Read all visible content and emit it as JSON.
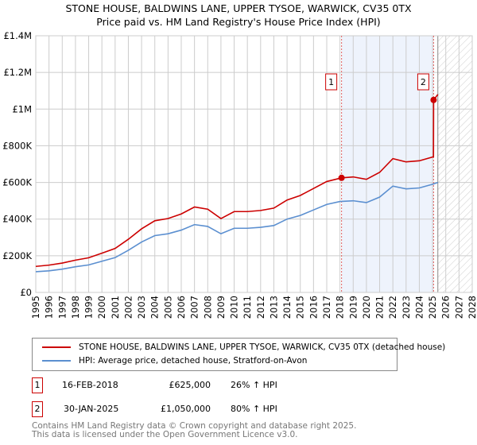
{
  "chart_data": {
    "type": "line",
    "title": "STONE HOUSE, BALDWINS LANE, UPPER TYSOE, WARWICK, CV35 0TX",
    "subtitle": "Price paid vs. HM Land Registry's House Price Index (HPI)",
    "xlim": [
      1995,
      2028
    ],
    "ylim": [
      0,
      1400000
    ],
    "y_ticks": [
      {
        "v": 0,
        "l": "£0"
      },
      {
        "v": 200000,
        "l": "£200K"
      },
      {
        "v": 400000,
        "l": "£400K"
      },
      {
        "v": 600000,
        "l": "£600K"
      },
      {
        "v": 800000,
        "l": "£800K"
      },
      {
        "v": 1000000,
        "l": "£1M"
      },
      {
        "v": 1200000,
        "l": "£1.2M"
      },
      {
        "v": 1400000,
        "l": "£1.4M"
      }
    ],
    "x_ticks": [
      "1995",
      "1996",
      "1997",
      "1998",
      "1999",
      "2000",
      "2001",
      "2002",
      "2003",
      "2004",
      "2005",
      "2006",
      "2007",
      "2008",
      "2009",
      "2010",
      "2011",
      "2012",
      "2013",
      "2014",
      "2015",
      "2016",
      "2017",
      "2018",
      "2019",
      "2020",
      "2021",
      "2022",
      "2023",
      "2024",
      "2025",
      "2026",
      "2027",
      "2028"
    ],
    "series": [
      {
        "name": "STONE HOUSE, BALDWINS LANE, UPPER TYSOE, WARWICK, CV35 0TX (detached house)",
        "color": "#cc0000",
        "x": [
          1995,
          1996,
          1997,
          1998,
          1999,
          2000,
          2001,
          2002,
          2003,
          2004,
          2005,
          2006,
          2007,
          2008,
          2009,
          2010,
          2011,
          2012,
          2013,
          2014,
          2015,
          2016,
          2017,
          2018.12,
          2019,
          2020,
          2021,
          2022,
          2023,
          2024,
          2025.07,
          2025.08,
          2025.4
        ],
        "y": [
          142000,
          149000,
          160000,
          176000,
          189000,
          214000,
          240000,
          290000,
          347000,
          391000,
          403000,
          428000,
          466000,
          454000,
          403000,
          441000,
          441000,
          447000,
          460000,
          504000,
          529000,
          567000,
          605000,
          625000,
          630000,
          617000,
          655000,
          730000,
          712000,
          718000,
          740000,
          1050000,
          1080000
        ]
      },
      {
        "name": "HPI: Average price, detached house, Stratford-on-Avon",
        "color": "#5b8fd0",
        "x": [
          1995,
          1996,
          1997,
          1998,
          1999,
          2000,
          2001,
          2002,
          2003,
          2004,
          2005,
          2006,
          2007,
          2008,
          2009,
          2010,
          2011,
          2012,
          2013,
          2014,
          2015,
          2016,
          2017,
          2018,
          2019,
          2020,
          2021,
          2022,
          2023,
          2024,
          2025,
          2025.4
        ],
        "y": [
          113000,
          118000,
          127000,
          140000,
          150000,
          170000,
          190000,
          230000,
          275000,
          310000,
          320000,
          340000,
          370000,
          360000,
          320000,
          350000,
          350000,
          355000,
          365000,
          400000,
          420000,
          450000,
          480000,
          496000,
          500000,
          490000,
          520000,
          580000,
          565000,
          570000,
          590000,
          600000
        ]
      }
    ],
    "sales": [
      {
        "n": "1",
        "x": 2018.12,
        "y": 625000
      },
      {
        "n": "2",
        "x": 2025.08,
        "y": 1050000
      }
    ],
    "forecast_from": 2025.4
  },
  "legend": {
    "red": "STONE HOUSE, BALDWINS LANE, UPPER TYSOE, WARWICK, CV35 0TX (detached house)",
    "blue": "HPI: Average price, detached house, Stratford-on-Avon"
  },
  "transactions": [
    {
      "n": "1",
      "date": "16-FEB-2018",
      "price": "£625,000",
      "hpi": "26% ↑ HPI"
    },
    {
      "n": "2",
      "date": "30-JAN-2025",
      "price": "£1,050,000",
      "hpi": "80% ↑ HPI"
    }
  ],
  "footer": {
    "line1": "Contains HM Land Registry data © Crown copyright and database right 2025.",
    "line2": "This data is licensed under the Open Government Licence v3.0."
  }
}
